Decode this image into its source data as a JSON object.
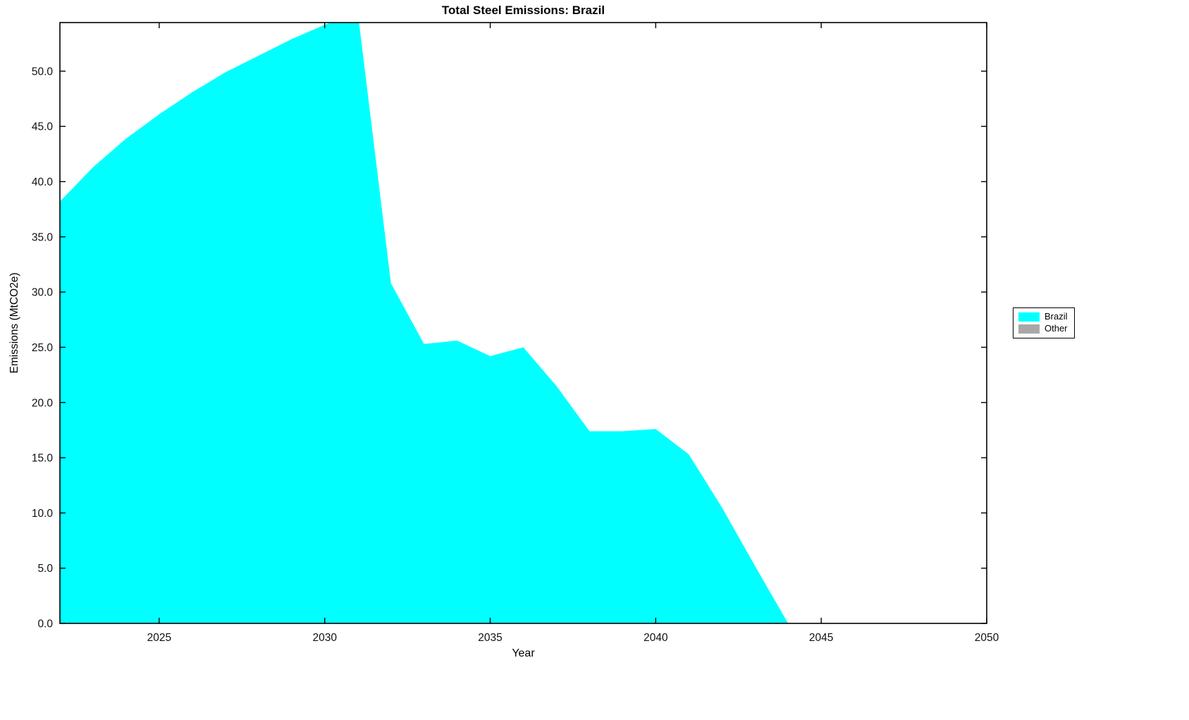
{
  "chart_data": {
    "type": "area",
    "title": "Total Steel Emissions: Brazil",
    "xlabel": "Year",
    "ylabel": "Emissions (MtCO2e)",
    "xlim": [
      2022,
      2050
    ],
    "ylim": [
      0,
      54.4
    ],
    "xticks": [
      2025,
      2030,
      2035,
      2040,
      2045,
      2050
    ],
    "yticks": [
      0,
      5,
      10,
      15,
      20,
      25,
      30,
      35,
      40,
      45,
      50
    ],
    "ytick_decimals": 1,
    "grid": false,
    "legend_position": "right-outside-middle",
    "x": [
      2022,
      2023,
      2024,
      2025,
      2026,
      2027,
      2028,
      2029,
      2030,
      2031,
      2032,
      2033,
      2034,
      2035,
      2036,
      2037,
      2038,
      2039,
      2040,
      2041,
      2042,
      2043,
      2044,
      2045,
      2046,
      2047,
      2048,
      2049,
      2050
    ],
    "series": [
      {
        "name": "Brazil",
        "color": "#00FFFF",
        "values": [
          38.2,
          41.3,
          43.9,
          46.1,
          48.1,
          49.9,
          51.4,
          52.9,
          54.2,
          55.3,
          30.8,
          25.3,
          25.6,
          24.2,
          25.0,
          21.5,
          17.4,
          17.4,
          17.6,
          15.3,
          10.5,
          5.2,
          0.0,
          0.0,
          0.0,
          0.0,
          0.0,
          0.0,
          0.0
        ]
      }
    ],
    "legend": [
      {
        "label": "Brazil",
        "color": "#00FFFF"
      },
      {
        "label": "Other",
        "color": "#A8A8A8"
      }
    ]
  }
}
